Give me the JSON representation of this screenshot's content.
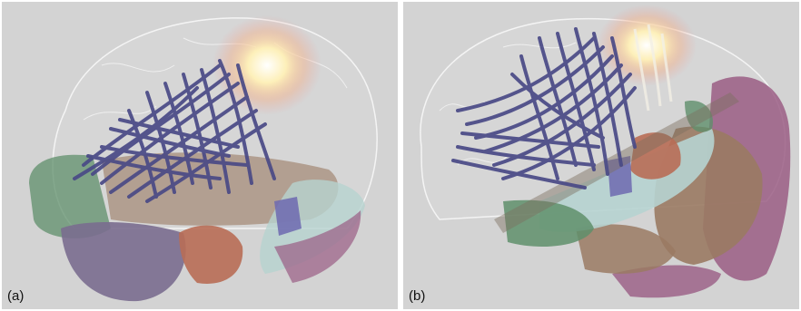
{
  "panels": [
    {
      "id": "a",
      "label": "(a)"
    },
    {
      "id": "b",
      "label": "(b)"
    }
  ],
  "colors": {
    "background": "#d3d3d3",
    "fibers": "#4a4a86",
    "glow": "#fff6c8",
    "outline": "#f2f2f2",
    "region_green": "#5f8f6b",
    "region_purple": "#7a6d8f",
    "region_brown": "#9a7a63",
    "region_orange": "#b86d55",
    "region_teal": "#b6d3d0",
    "region_magenta": "#9a5d84"
  }
}
